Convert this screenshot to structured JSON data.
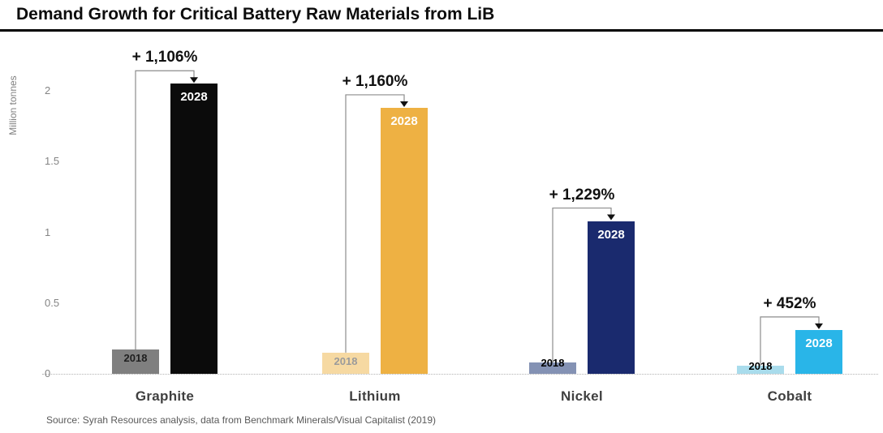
{
  "page": {
    "title": "Demand Growth for Critical Battery Raw Materials from LiB",
    "source": "Source: Syrah Resources analysis, data from Benchmark Minerals/Visual Capitalist (2019)"
  },
  "chart_data": {
    "type": "bar",
    "title": "Demand Growth for Critical Battery Raw Materials from LiB",
    "ylabel": "Million tonnes",
    "ylim": [
      0,
      2.2
    ],
    "yticks": [
      0,
      0.5,
      1,
      1.5,
      2
    ],
    "grid": false,
    "legend_position": "none",
    "categories": [
      "Graphite",
      "Lithium",
      "Nickel",
      "Cobalt"
    ],
    "series": [
      {
        "name": "2018",
        "values": [
          0.17,
          0.15,
          0.08,
          0.06
        ],
        "colors": [
          "#7f7f7f",
          "#f6d9a2",
          "#8492b4",
          "#a9dcec"
        ],
        "label_colors": [
          "#1f1f1f",
          "#9b9b9b",
          "#000000",
          "#000000"
        ]
      },
      {
        "name": "2028",
        "values": [
          2.05,
          1.88,
          1.08,
          0.31
        ],
        "colors": [
          "#0b0b0b",
          "#eeb143",
          "#1a2a6e",
          "#29b5e8"
        ],
        "label_colors": [
          "#ffffff",
          "#ffffff",
          "#ffffff",
          "#ffffff"
        ]
      }
    ],
    "growth_labels": [
      "+ 1,106%",
      "+ 1,160%",
      "+ 1,229%",
      "+ 452%"
    ],
    "connector_color": "#8c8c8c",
    "arrow_color": "#111111"
  }
}
